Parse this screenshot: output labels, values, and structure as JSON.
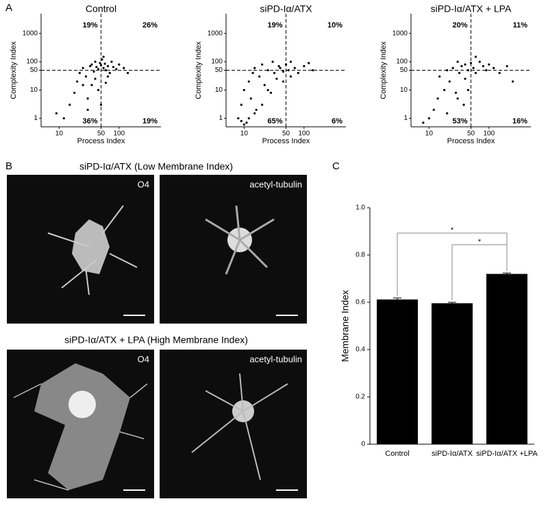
{
  "panel_labels": [
    "A",
    "B",
    "C"
  ],
  "panel_b": {
    "top_title": "siPD-Iα/ATX (Low Membrane Index)",
    "bottom_title": "siPD-Iα/ATX + LPA (High Membrane Index)",
    "stain_1": "O4",
    "stain_2": "acetyl-tubulin"
  },
  "chart_data": [
    {
      "type": "scatter",
      "title": "Control",
      "xlabel": "Process Index",
      "ylabel": "Complexity Index",
      "color": "#000",
      "xscale": "log",
      "yscale": "log",
      "xlim": [
        5,
        500
      ],
      "ylim": [
        0.5,
        5000
      ],
      "xticks": [
        10,
        50,
        100
      ],
      "yticks": [
        1,
        10,
        50,
        100,
        1000
      ],
      "quadrant_lines": {
        "x": 50,
        "y": 50
      },
      "quadrant_labels": {
        "top_left": "19%",
        "top_right": "26%",
        "bottom_left": "36%",
        "bottom_right": "19%"
      },
      "x": [
        12,
        15,
        18,
        20,
        22,
        25,
        28,
        30,
        33,
        35,
        38,
        40,
        42,
        45,
        48,
        50,
        52,
        55,
        58,
        60,
        65,
        70,
        75,
        80,
        90,
        100,
        120,
        140,
        30,
        45,
        55,
        65,
        40,
        25,
        35,
        9,
        50,
        60
      ],
      "values": [
        1,
        3,
        8,
        20,
        40,
        60,
        30,
        5,
        70,
        80,
        45,
        100,
        65,
        55,
        90,
        75,
        120,
        60,
        85,
        50,
        70,
        40,
        100,
        65,
        55,
        80,
        60,
        40,
        2,
        10,
        150,
        30,
        25,
        15,
        15,
        1.5,
        3,
        18
      ]
    },
    {
      "type": "scatter",
      "title": "siPD-Iα/ATX",
      "xlabel": "Process Index",
      "ylabel": "Complexity Index",
      "color": "#000",
      "xscale": "log",
      "yscale": "log",
      "xlim": [
        5,
        500
      ],
      "ylim": [
        0.5,
        5000
      ],
      "xticks": [
        10,
        50,
        100
      ],
      "yticks": [
        1,
        10,
        50,
        100,
        1000
      ],
      "quadrant_lines": {
        "x": 50,
        "y": 50
      },
      "quadrant_labels": {
        "top_left": "19%",
        "top_right": "10%",
        "bottom_left": "65%",
        "bottom_right": "6%"
      },
      "x": [
        8,
        9,
        10,
        11,
        12,
        13,
        14,
        15,
        16,
        18,
        20,
        22,
        25,
        28,
        30,
        32,
        35,
        38,
        40,
        45,
        50,
        55,
        60,
        70,
        80,
        100,
        120,
        140,
        10,
        12,
        15,
        20,
        9,
        25,
        45,
        60
      ],
      "values": [
        1,
        3,
        10,
        0.7,
        20,
        5,
        40,
        60,
        2,
        30,
        80,
        15,
        50,
        8,
        100,
        40,
        25,
        70,
        60,
        45,
        80,
        50,
        100,
        60,
        40,
        70,
        90,
        50,
        0.6,
        1,
        1.5,
        3,
        0.8,
        10,
        20,
        30
      ]
    },
    {
      "type": "scatter",
      "title": "siPD-Iα/ATX + LPA",
      "xlabel": "Process Index",
      "ylabel": "Complexity Index",
      "color": "#000",
      "xscale": "log",
      "yscale": "log",
      "xlim": [
        5,
        500
      ],
      "ylim": [
        0.5,
        5000
      ],
      "xticks": [
        10,
        50,
        100
      ],
      "yticks": [
        1,
        10,
        50,
        100,
        1000
      ],
      "quadrant_lines": {
        "x": 50,
        "y": 50
      },
      "quadrant_labels": {
        "top_left": "20%",
        "top_right": "11%",
        "bottom_left": "53%",
        "bottom_right": "16%"
      },
      "x": [
        10,
        12,
        14,
        15,
        18,
        20,
        22,
        25,
        28,
        30,
        32,
        35,
        38,
        40,
        45,
        50,
        55,
        60,
        70,
        80,
        90,
        100,
        120,
        150,
        200,
        250,
        8,
        20,
        30,
        45,
        60,
        40
      ],
      "values": [
        1,
        2,
        5,
        30,
        10,
        50,
        20,
        60,
        8,
        100,
        40,
        70,
        3,
        80,
        50,
        90,
        60,
        40,
        100,
        70,
        50,
        80,
        60,
        40,
        70,
        20,
        0.7,
        1.5,
        5,
        10,
        150,
        25
      ]
    },
    {
      "type": "bar",
      "ylabel": "Membrane Index",
      "color": "#000",
      "categories": [
        "Control",
        "siPD-Iα/ATX",
        "siPD-Iα/ATX +LPA"
      ],
      "values": [
        0.612,
        0.596,
        0.72
      ],
      "errors": [
        0.006,
        0.004,
        0.004
      ],
      "ylim": [
        0,
        1
      ],
      "yticks": [
        0,
        0.2,
        0.4,
        0.6,
        0.8,
        {
          "value": 1,
          "label": "1.0"
        }
      ],
      "significance": [
        {
          "from": 0,
          "to": 2,
          "label": "*"
        },
        {
          "from": 1,
          "to": 2,
          "label": "*"
        }
      ]
    }
  ]
}
